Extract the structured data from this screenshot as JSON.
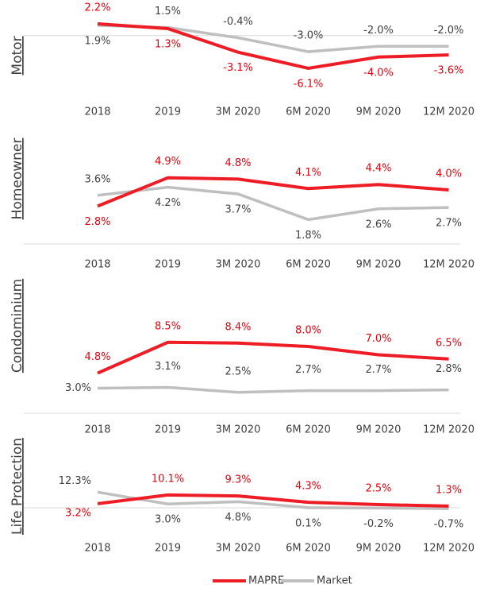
{
  "chart_data": [
    {
      "type": "line",
      "y_label": "Motor",
      "categories": [
        "2018",
        "2019",
        "3M 2020",
        "6M 2020",
        "9M 2020",
        "12M 2020"
      ],
      "ylim": [
        -8,
        4
      ],
      "series": [
        {
          "name": "MAPRE",
          "color": "#ee1c25",
          "values": [
            2.2,
            1.3,
            -3.1,
            -6.1,
            -4.0,
            -3.6
          ],
          "value_labels": [
            "2.2%",
            "1.3%",
            "-3.1%",
            "-6.1%",
            "-4.0%",
            "-3.6%"
          ]
        },
        {
          "name": "Market",
          "color": "#bfbfbf",
          "values": [
            1.9,
            1.5,
            -0.4,
            -3.0,
            -2.0,
            -2.0
          ],
          "value_labels": [
            "1.9%",
            "1.5%",
            "-0.4%",
            "-3.0%",
            "-2.0%",
            "-2.0%"
          ]
        }
      ]
    },
    {
      "type": "line",
      "y_label": "Homeowner",
      "categories": [
        "2018",
        "2019",
        "3M 2020",
        "6M 2020",
        "9M 2020",
        "12M 2020"
      ],
      "ylim": [
        0,
        6
      ],
      "series": [
        {
          "name": "MAPRE",
          "color": "#ee1c25",
          "values": [
            2.8,
            4.9,
            4.8,
            4.1,
            4.4,
            4.0
          ],
          "value_labels": [
            "2.8%",
            "4.9%",
            "4.8%",
            "4.1%",
            "4.4%",
            "4.0%"
          ]
        },
        {
          "name": "Market",
          "color": "#bfbfbf",
          "values": [
            3.6,
            4.2,
            3.7,
            1.8,
            2.6,
            2.7
          ],
          "value_labels": [
            "3.6%",
            "4.2%",
            "3.7%",
            "1.8%",
            "2.6%",
            "2.7%"
          ]
        }
      ]
    },
    {
      "type": "line",
      "y_label": "Condominium",
      "categories": [
        "2018",
        "2019",
        "3M 2020",
        "6M 2020",
        "9M 2020",
        "12M 2020"
      ],
      "ylim": [
        0,
        10
      ],
      "series": [
        {
          "name": "MAPRE",
          "color": "#ee1c25",
          "values": [
            4.8,
            8.5,
            8.4,
            8.0,
            7.0,
            6.5
          ],
          "value_labels": [
            "4.8%",
            "8.5%",
            "8.4%",
            "8.0%",
            "7.0%",
            "6.5%"
          ]
        },
        {
          "name": "Market",
          "color": "#bfbfbf",
          "values": [
            3.0,
            3.1,
            2.5,
            2.7,
            2.7,
            2.8
          ],
          "value_labels": [
            "3.0%",
            "3.1%",
            "2.5%",
            "2.7%",
            "2.7%",
            "2.8%"
          ]
        }
      ]
    },
    {
      "type": "line",
      "y_label": "Life Protection",
      "categories": [
        "2018",
        "2019",
        "3M 2020",
        "6M 2020",
        "9M 2020",
        "12M 2020"
      ],
      "ylim": [
        -2,
        14
      ],
      "series": [
        {
          "name": "MAPRE",
          "color": "#ee1c25",
          "values": [
            3.2,
            10.1,
            9.3,
            4.3,
            2.5,
            1.3
          ],
          "value_labels": [
            "3.2%",
            "10.1%",
            "9.3%",
            "4.3%",
            "2.5%",
            "1.3%"
          ]
        },
        {
          "name": "Market",
          "color": "#bfbfbf",
          "values": [
            12.3,
            3.0,
            4.8,
            0.1,
            -0.2,
            -0.7
          ],
          "value_labels": [
            "12.3%",
            "3.0%",
            "4.8%",
            "0.1%",
            "-0.2%",
            "-0.7%"
          ]
        }
      ]
    }
  ]
}
